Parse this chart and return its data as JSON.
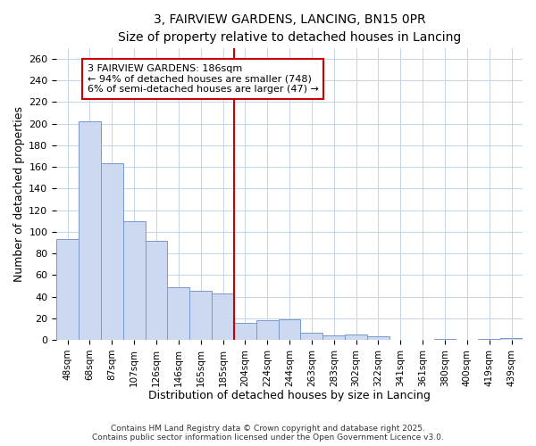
{
  "title_line1": "3, FAIRVIEW GARDENS, LANCING, BN15 0PR",
  "title_line2": "Size of property relative to detached houses in Lancing",
  "xlabel": "Distribution of detached houses by size in Lancing",
  "ylabel": "Number of detached properties",
  "footer_line1": "Contains HM Land Registry data © Crown copyright and database right 2025.",
  "footer_line2": "Contains public sector information licensed under the Open Government Licence v3.0.",
  "annotation_line1": "3 FAIRVIEW GARDENS: 186sqm",
  "annotation_line2": "← 94% of detached houses are smaller (748)",
  "annotation_line3": "6% of semi-detached houses are larger (47) →",
  "bar_labels": [
    "48sqm",
    "68sqm",
    "87sqm",
    "107sqm",
    "126sqm",
    "146sqm",
    "165sqm",
    "185sqm",
    "204sqm",
    "224sqm",
    "244sqm",
    "263sqm",
    "283sqm",
    "302sqm",
    "322sqm",
    "341sqm",
    "361sqm",
    "380sqm",
    "400sqm",
    "419sqm",
    "439sqm"
  ],
  "bar_values": [
    93,
    202,
    163,
    110,
    92,
    49,
    45,
    43,
    16,
    18,
    19,
    7,
    4,
    5,
    3,
    0,
    0,
    1,
    0,
    1,
    2
  ],
  "bar_color": "#ccd9f0",
  "bar_edge_color": "#7799cc",
  "vline_color": "#cc0000",
  "vline_x_index": 7,
  "annotation_box_color": "#cc0000",
  "annotation_box_fill": "#ffffff",
  "ylim": [
    0,
    270
  ],
  "yticks": [
    0,
    20,
    40,
    60,
    80,
    100,
    120,
    140,
    160,
    180,
    200,
    220,
    240,
    260
  ],
  "grid_color": "#c5d5ea",
  "background_color": "#ffffff",
  "figsize": [
    6.0,
    5.0
  ],
  "dpi": 100
}
